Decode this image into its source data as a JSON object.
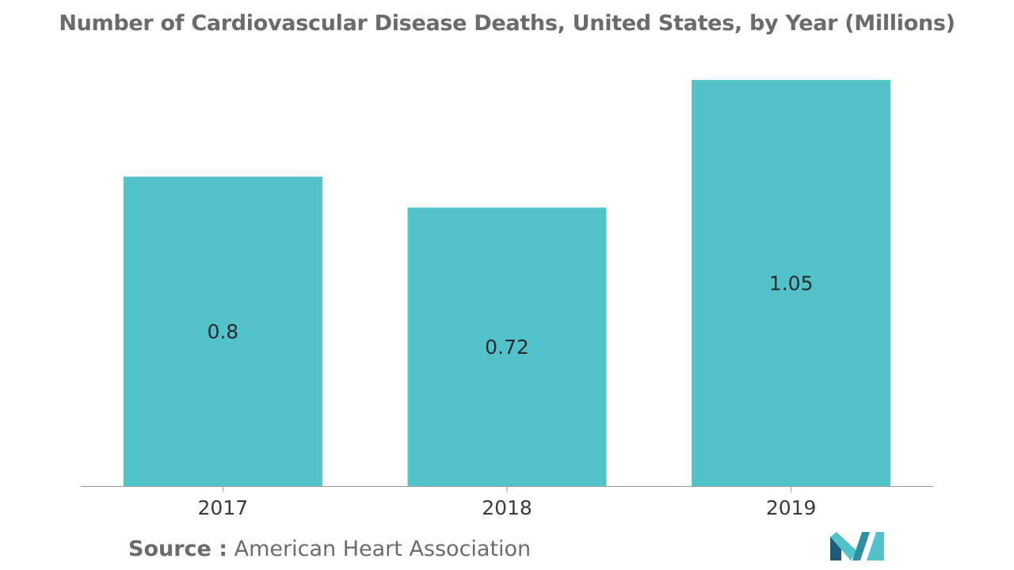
{
  "title": "Number of Cardiovascular Disease Deaths, United States, by Year (Millions)",
  "source": {
    "label": "Source :",
    "value": "American Heart Association"
  },
  "colors": {
    "bar": "#52c3ca",
    "title": "#6b6b6b",
    "axis": "#9a9a9a",
    "logo_dark": "#1f5a7a",
    "logo_light": "#52c3ca"
  },
  "logo": {
    "icon": "mordor-intelligence-logo-icon"
  },
  "chart_data": {
    "type": "bar",
    "title": "Number of Cardiovascular Disease Deaths, United States, by Year (Millions)",
    "categories": [
      "2017",
      "2018",
      "2019"
    ],
    "values": [
      0.8,
      0.72,
      1.05
    ],
    "data_labels": [
      "0.8",
      "0.72",
      "1.05"
    ],
    "xlabel": "",
    "ylabel": "",
    "ylim": [
      0,
      1.05
    ],
    "grid": false,
    "legend": "none"
  }
}
